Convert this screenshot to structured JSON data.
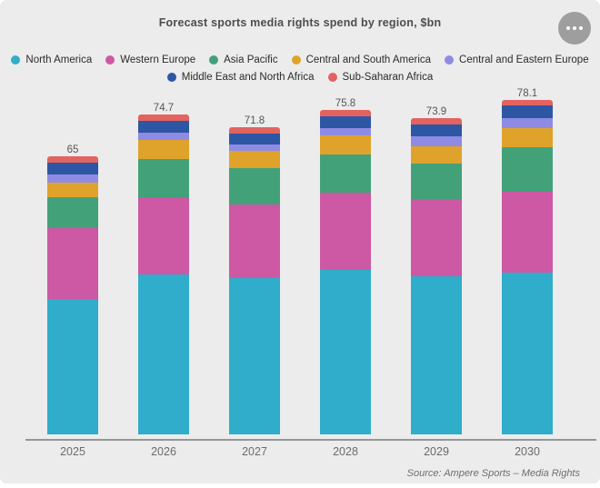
{
  "header": {
    "menu_icon": "ellipsis-icon"
  },
  "source": {
    "text": "Source:  Ampere Sports – Media Rights"
  },
  "colors": {
    "card_background": "#ececec",
    "axis": "#969696",
    "title_text": "#4d4d4d",
    "menu_button": "#9e9e9e"
  },
  "chart_data": {
    "type": "bar",
    "stacked": true,
    "title": "Forecast sports media rights spend by region, $bn",
    "xlabel": "",
    "ylabel": "",
    "grid": false,
    "legend_position": "top",
    "legend_rows": [
      5,
      2
    ],
    "categories": [
      "2025",
      "2026",
      "2027",
      "2028",
      "2029",
      "2030"
    ],
    "totals": [
      65,
      74.7,
      71.8,
      75.8,
      73.9,
      78.1
    ],
    "series": [
      {
        "name": "North America",
        "color": "#2fadcb",
        "values": [
          31.6,
          37.4,
          36.6,
          38.4,
          37.0,
          37.8
        ]
      },
      {
        "name": "Western Europe",
        "color": "#cd58a3",
        "values": [
          16.6,
          18.0,
          17.2,
          18.0,
          18.0,
          18.9
        ]
      },
      {
        "name": "Asia Pacific",
        "color": "#43a179",
        "values": [
          7.2,
          8.9,
          8.5,
          9.1,
          8.3,
          10.3
        ]
      },
      {
        "name": "Central and South America",
        "color": "#dfa32b",
        "values": [
          3.4,
          4.5,
          4.0,
          4.3,
          4.0,
          4.5
        ]
      },
      {
        "name": "Central and Eastern Europe",
        "color": "#8f8be3",
        "values": [
          1.9,
          1.7,
          1.5,
          1.7,
          2.3,
          2.3
        ]
      },
      {
        "name": "Middle East and North Africa",
        "color": "#2d56a5",
        "values": [
          2.8,
          2.7,
          2.5,
          2.8,
          2.8,
          3.0
        ]
      },
      {
        "name": "Sub-Saharan Africa",
        "color": "#e2635f",
        "values": [
          1.5,
          1.5,
          1.5,
          1.5,
          1.5,
          1.3
        ]
      }
    ],
    "ylim": [
      0,
      80
    ]
  }
}
